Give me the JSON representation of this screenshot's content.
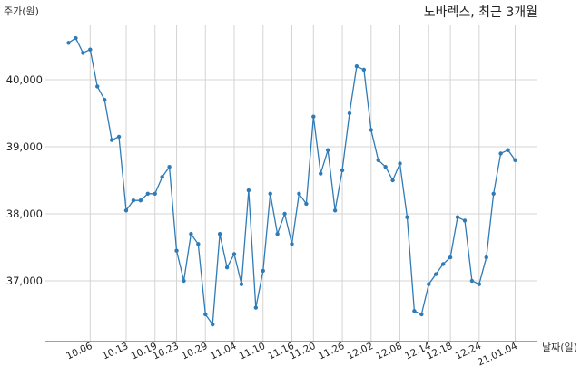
{
  "chart_data": {
    "type": "line",
    "title": "노바렉스, 최근 3개월",
    "xlabel": "날짜(일)",
    "ylabel": "주가(원)",
    "ylim": [
      36100,
      40800
    ],
    "yticks": [
      37000,
      38000,
      39000,
      40000
    ],
    "ytick_labels": [
      "37,000",
      "38,000",
      "39,000",
      "40,000"
    ],
    "x_tick_labels": [
      "10.06",
      "10.13",
      "10.19",
      "10.23",
      "10.29",
      "11.04",
      "11.10",
      "11.16",
      "11.20",
      "11.26",
      "12.02",
      "12.08",
      "12.14",
      "12.18",
      "12.24",
      "21.01.04"
    ],
    "x_tick_index": [
      3,
      8,
      12,
      15,
      19,
      23,
      27,
      31,
      34,
      38,
      42,
      46,
      50,
      53,
      57,
      62
    ],
    "grid": true,
    "color": "#2f7bb6",
    "x_count": 62,
    "values": [
      40550,
      40620,
      40400,
      40450,
      39900,
      39700,
      39100,
      39150,
      38050,
      38200,
      38200,
      38300,
      38300,
      38550,
      38700,
      37450,
      37000,
      37700,
      37550,
      36500,
      36350,
      37700,
      37200,
      37400,
      36950,
      38350,
      36600,
      37150,
      38300,
      37700,
      38000,
      37550,
      38300,
      38150,
      39450,
      38600,
      38950,
      38050,
      38650,
      39500,
      40200,
      40150,
      39250,
      38800,
      38700,
      38500,
      38750,
      37950,
      36550,
      36500,
      36950,
      37100,
      37250,
      37350,
      37950,
      37900,
      37000,
      36950,
      37350,
      38300,
      38900,
      38950,
      38800
    ]
  }
}
